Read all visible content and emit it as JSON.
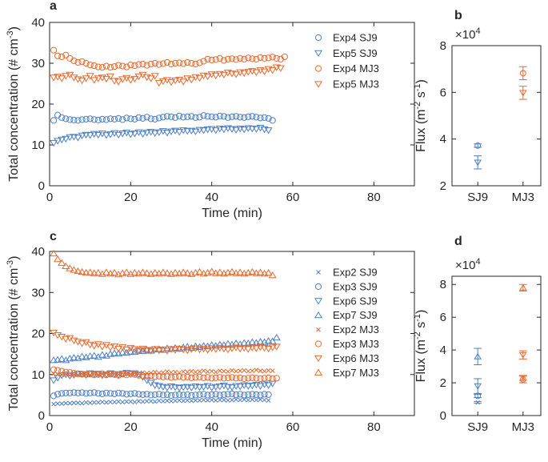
{
  "colors": {
    "sj9": "#4d7fc4",
    "mj3": "#e8692c",
    "axis": "#262626"
  },
  "chart_data": [
    {
      "panel": "a",
      "type": "scatter",
      "xlabel": "Time (min)",
      "ylabel": "Total concentration (# cm^-3)",
      "ylabel_main": "Total concentration (# cm",
      "ylabel_sup": "-3",
      "ylabel_end": ")",
      "xlim": [
        0,
        90
      ],
      "ylim": [
        0,
        40
      ],
      "xticks": [
        0,
        20,
        40,
        60,
        80
      ],
      "yticks": [
        0,
        10,
        20,
        30,
        40
      ],
      "legend_position": "right",
      "series": [
        {
          "name": "Exp4 SJ9",
          "color": "sj9",
          "marker": "circle",
          "start": 1,
          "step": 1,
          "end": 55,
          "values": [
            16.0,
            17.3,
            16.7,
            16.4,
            16.2,
            16.1,
            16.0,
            16.2,
            16.3,
            16.4,
            16.2,
            16.1,
            16.3,
            16.2,
            16.4,
            16.3,
            16.5,
            16.2,
            16.6,
            16.4,
            16.3,
            16.7,
            16.5,
            16.8,
            16.4,
            16.3,
            16.6,
            16.8,
            17.0,
            16.9,
            16.7,
            17.1,
            16.8,
            16.9,
            17.0,
            16.7,
            16.8,
            17.2,
            17.0,
            16.9,
            16.8,
            17.1,
            17.0,
            16.7,
            16.9,
            17.0,
            16.8,
            16.7,
            16.9,
            17.0,
            16.8,
            16.6,
            16.7,
            16.5,
            16.0
          ]
        },
        {
          "name": "Exp5 SJ9",
          "color": "sj9",
          "marker": "triangle-down",
          "start": 1,
          "step": 1,
          "end": 54,
          "values": [
            10.5,
            11.0,
            11.3,
            11.5,
            11.9,
            12.0,
            11.8,
            12.3,
            12.5,
            12.4,
            12.7,
            12.5,
            12.8,
            12.4,
            12.6,
            12.9,
            12.5,
            12.8,
            13.0,
            12.6,
            12.8,
            13.1,
            12.7,
            13.0,
            13.2,
            12.9,
            13.1,
            13.4,
            13.0,
            13.3,
            13.5,
            13.2,
            13.6,
            13.4,
            13.5,
            13.3,
            13.7,
            13.6,
            13.8,
            13.9,
            13.6,
            14.0,
            13.8,
            14.1,
            13.9,
            13.7,
            14.0,
            13.8,
            14.1,
            14.0,
            13.9,
            14.2,
            13.8,
            13.6
          ]
        },
        {
          "name": "Exp4 MJ3",
          "color": "mj3",
          "marker": "circle",
          "start": 1,
          "step": 1,
          "end": 58,
          "values": [
            33.2,
            31.8,
            31.6,
            32.0,
            31.2,
            30.6,
            30.2,
            30.4,
            30.0,
            29.6,
            29.4,
            29.1,
            29.0,
            29.3,
            29.0,
            29.2,
            29.5,
            29.3,
            29.1,
            29.6,
            29.4,
            29.7,
            29.8,
            29.5,
            29.8,
            30.0,
            29.7,
            29.9,
            30.2,
            29.8,
            30.0,
            30.1,
            29.9,
            30.2,
            30.0,
            29.8,
            30.1,
            30.5,
            31.0,
            30.8,
            30.9,
            31.2,
            30.7,
            31.0,
            31.1,
            30.9,
            31.2,
            31.0,
            31.3,
            31.1,
            31.0,
            31.4,
            31.2,
            31.3,
            31.5,
            31.2,
            31.0,
            31.6
          ]
        },
        {
          "name": "Exp5 MJ3",
          "color": "mj3",
          "marker": "triangle-down",
          "start": 1,
          "step": 1,
          "end": 57,
          "values": [
            26.5,
            26.7,
            26.3,
            26.9,
            27.2,
            26.5,
            26.1,
            25.8,
            26.3,
            26.9,
            25.9,
            26.3,
            26.5,
            26.2,
            26.8,
            25.7,
            25.5,
            26.1,
            26.4,
            25.9,
            26.2,
            26.8,
            27.2,
            26.6,
            26.3,
            26.9,
            25.2,
            25.6,
            25.9,
            25.4,
            25.8,
            26.0,
            25.5,
            26.3,
            26.0,
            26.6,
            26.4,
            27.0,
            26.8,
            27.3,
            27.0,
            27.4,
            27.2,
            27.7,
            27.5,
            27.3,
            27.8,
            27.6,
            27.9,
            28.1,
            27.8,
            28.3,
            28.0,
            28.6,
            28.3,
            29.0,
            28.8
          ]
        }
      ]
    },
    {
      "panel": "b",
      "type": "scatter",
      "xlabel": "",
      "ylabel": "Flux (m^-2 s^-1)",
      "ylabel_main": "Flux (m",
      "ylabel_sup1": "-2",
      "ylabel_mid": " s",
      "ylabel_sup2": "-1",
      "ylabel_end": ")",
      "exponent_prefix": "×10",
      "exponent_power": "4",
      "categories": [
        "SJ9",
        "MJ3"
      ],
      "ylim": [
        2,
        8
      ],
      "yticks": [
        2,
        4,
        6,
        8
      ],
      "series": [
        {
          "name": "Exp4 SJ9",
          "category": "SJ9",
          "color": "sj9",
          "marker": "circle",
          "value": 3.72,
          "error": 0.07
        },
        {
          "name": "Exp5 SJ9",
          "category": "SJ9",
          "color": "sj9",
          "marker": "triangle-down",
          "value": 3.0,
          "error": 0.28
        },
        {
          "name": "Exp4 MJ3",
          "category": "MJ3",
          "color": "mj3",
          "marker": "circle",
          "value": 6.82,
          "error": 0.28
        },
        {
          "name": "Exp5 MJ3",
          "category": "MJ3",
          "color": "mj3",
          "marker": "triangle-down",
          "value": 5.98,
          "error": 0.28
        }
      ]
    },
    {
      "panel": "c",
      "type": "scatter",
      "xlabel": "Time (min)",
      "ylabel": "Total concentration (# cm^-3)",
      "ylabel_main": "Total concentration (# cm",
      "ylabel_sup": "-3",
      "ylabel_end": ")",
      "xlim": [
        0,
        90
      ],
      "ylim": [
        0,
        40
      ],
      "xticks": [
        0,
        20,
        40,
        60,
        80
      ],
      "yticks": [
        0,
        10,
        20,
        30,
        40
      ],
      "legend_position": "right",
      "series": [
        {
          "name": "Exp2 SJ9",
          "color": "sj9",
          "marker": "x",
          "start": 1,
          "step": 1,
          "end": 54,
          "values": [
            2.8,
            2.9,
            2.9,
            3.0,
            3.0,
            3.1,
            3.1,
            3.0,
            3.2,
            3.1,
            3.2,
            3.2,
            3.3,
            3.2,
            3.3,
            3.3,
            3.4,
            3.3,
            3.4,
            3.4,
            3.3,
            3.5,
            3.4,
            3.5,
            3.5,
            3.4,
            3.6,
            3.5,
            3.6,
            3.5,
            3.6,
            3.7,
            3.6,
            3.7,
            3.6,
            3.7,
            3.7,
            3.8,
            3.7,
            3.8,
            3.7,
            3.8,
            3.8,
            3.7,
            3.8,
            3.9,
            3.8,
            3.9,
            3.8,
            3.9,
            3.8,
            3.9,
            3.8,
            3.7
          ]
        },
        {
          "name": "Exp3 SJ9",
          "color": "sj9",
          "marker": "circle",
          "start": 1,
          "step": 1,
          "end": 54,
          "values": [
            4.8,
            5.2,
            5.4,
            5.5,
            5.5,
            5.6,
            5.5,
            5.6,
            5.4,
            5.5,
            5.6,
            5.4,
            5.3,
            5.5,
            5.4,
            5.3,
            5.5,
            5.4,
            5.2,
            5.3,
            5.4,
            5.2,
            5.1,
            5.2,
            5.0,
            5.1,
            5.2,
            5.0,
            5.1,
            4.9,
            5.0,
            5.1,
            5.0,
            5.1,
            4.9,
            5.0,
            5.1,
            5.2,
            5.0,
            5.1,
            5.2,
            5.0,
            5.1,
            5.2,
            5.3,
            5.1,
            5.2,
            5.0,
            5.1,
            5.2,
            5.1,
            5.0,
            5.2,
            5.1
          ]
        },
        {
          "name": "Exp6 SJ9",
          "color": "sj9",
          "marker": "triangle-down",
          "start": 1,
          "step": 1,
          "end": 55,
          "values": [
            8.6,
            9.2,
            9.8,
            10.0,
            9.7,
            9.9,
            10.2,
            10.1,
            9.9,
            10.3,
            10.1,
            10.2,
            9.8,
            10.0,
            10.3,
            10.1,
            9.9,
            10.2,
            10.4,
            10.1,
            10.3,
            10.0,
            9.4,
            8.6,
            8.0,
            7.4,
            7.2,
            7.0,
            6.8,
            7.1,
            6.9,
            6.7,
            6.9,
            7.0,
            6.8,
            7.1,
            6.9,
            7.0,
            7.2,
            6.8,
            7.0,
            7.1,
            7.3,
            7.0,
            6.9,
            7.2,
            7.1,
            7.4,
            7.2,
            7.3,
            7.5,
            7.2,
            7.6,
            7.4,
            7.8
          ]
        },
        {
          "name": "Exp7 SJ9",
          "color": "sj9",
          "marker": "triangle",
          "start": 1,
          "step": 1,
          "end": 56,
          "values": [
            13.5,
            13.6,
            13.8,
            13.5,
            13.9,
            14.1,
            14.0,
            14.4,
            14.2,
            14.5,
            14.6,
            14.3,
            14.8,
            14.6,
            15.0,
            15.2,
            15.1,
            15.4,
            15.3,
            15.6,
            15.5,
            15.8,
            15.7,
            16.0,
            15.8,
            16.1,
            16.2,
            16.0,
            16.4,
            16.2,
            16.5,
            16.3,
            16.6,
            16.8,
            16.5,
            16.9,
            16.7,
            17.0,
            16.9,
            17.2,
            17.0,
            17.3,
            17.2,
            17.5,
            17.3,
            17.6,
            17.4,
            17.7,
            17.6,
            17.9,
            17.7,
            18.0,
            17.9,
            18.2,
            18.1,
            19.0
          ]
        },
        {
          "name": "Exp2 MJ3",
          "color": "mj3",
          "marker": "x",
          "start": 1,
          "step": 1,
          "end": 55,
          "values": [
            10.2,
            10.0,
            9.9,
            10.1,
            9.8,
            10.0,
            9.9,
            10.1,
            10.0,
            9.9,
            10.2,
            10.0,
            10.1,
            10.3,
            10.1,
            10.2,
            10.0,
            10.3,
            10.2,
            10.1,
            10.4,
            10.2,
            10.5,
            10.3,
            10.4,
            10.6,
            10.4,
            10.5,
            10.7,
            10.5,
            10.6,
            10.4,
            10.7,
            10.6,
            10.8,
            10.6,
            10.7,
            10.9,
            10.7,
            10.8,
            10.6,
            10.9,
            10.8,
            10.7,
            11.0,
            10.8,
            10.9,
            11.0,
            10.8,
            10.9,
            11.1,
            10.9,
            10.8,
            11.0,
            10.9
          ]
        },
        {
          "name": "Exp3 MJ3",
          "color": "mj3",
          "marker": "circle",
          "start": 1,
          "step": 1,
          "end": 56,
          "values": [
            11.2,
            11.0,
            10.8,
            10.6,
            10.5,
            10.3,
            10.2,
            10.1,
            10.0,
            10.1,
            9.9,
            10.0,
            10.2,
            9.9,
            10.1,
            10.0,
            9.8,
            10.1,
            9.9,
            10.2,
            10.0,
            9.8,
            9.7,
            9.6,
            9.7,
            9.5,
            9.6,
            9.4,
            9.5,
            9.3,
            9.4,
            9.5,
            9.3,
            9.4,
            9.2,
            9.3,
            9.4,
            9.2,
            9.3,
            9.1,
            9.2,
            9.3,
            9.1,
            9.2,
            9.3,
            9.1,
            9.2,
            9.0,
            9.1,
            9.2,
            9.1,
            9.0,
            9.1,
            9.2,
            9.0,
            9.1
          ]
        },
        {
          "name": "Exp6 MJ3",
          "color": "mj3",
          "marker": "triangle-down",
          "start": 1,
          "step": 1,
          "end": 56,
          "values": [
            20.2,
            19.6,
            19.2,
            18.7,
            18.9,
            18.3,
            18.0,
            17.6,
            17.9,
            17.3,
            17.0,
            17.4,
            16.8,
            17.2,
            16.6,
            16.9,
            16.3,
            16.7,
            16.1,
            16.5,
            16.2,
            15.9,
            16.3,
            16.0,
            15.8,
            16.2,
            15.9,
            16.1,
            15.8,
            16.2,
            16.0,
            16.3,
            16.1,
            15.9,
            16.2,
            16.4,
            16.1,
            16.3,
            16.0,
            16.4,
            16.2,
            16.5,
            16.3,
            16.1,
            16.4,
            16.6,
            16.3,
            16.5,
            16.2,
            16.6,
            16.4,
            16.7,
            16.5,
            16.3,
            16.6,
            16.8
          ]
        },
        {
          "name": "Exp7 MJ3",
          "color": "mj3",
          "marker": "triangle",
          "start": 1,
          "step": 1,
          "end": 55,
          "values": [
            39.5,
            38.1,
            37.2,
            36.4,
            35.9,
            35.5,
            35.2,
            35.0,
            34.8,
            34.9,
            34.7,
            34.8,
            34.5,
            34.9,
            34.6,
            34.8,
            34.4,
            34.7,
            34.9,
            34.5,
            34.8,
            34.6,
            34.9,
            34.7,
            34.5,
            34.8,
            34.6,
            34.9,
            34.7,
            34.5,
            34.8,
            34.6,
            34.9,
            34.7,
            34.5,
            34.8,
            35.0,
            34.6,
            34.8,
            35.1,
            34.7,
            34.9,
            34.6,
            34.8,
            35.0,
            34.7,
            34.9,
            34.6,
            34.8,
            35.0,
            34.7,
            34.9,
            34.6,
            34.8,
            34.2
          ]
        }
      ]
    },
    {
      "panel": "d",
      "type": "scatter",
      "xlabel": "",
      "ylabel": "Flux (m^-2 s^-1)",
      "ylabel_main": "Flux (m",
      "ylabel_sup1": "-2",
      "ylabel_mid": " s",
      "ylabel_sup2": "-1",
      "ylabel_end": ")",
      "exponent_prefix": "×10",
      "exponent_power": "4",
      "categories": [
        "SJ9",
        "MJ3"
      ],
      "ylim": [
        0,
        8.5
      ],
      "yticks": [
        0,
        2,
        4,
        6,
        8
      ],
      "series": [
        {
          "name": "Exp2 SJ9",
          "category": "SJ9",
          "color": "sj9",
          "marker": "x",
          "value": 0.8,
          "error": 0.05
        },
        {
          "name": "Exp3 SJ9",
          "category": "SJ9",
          "color": "sj9",
          "marker": "circle",
          "value": 1.2,
          "error": 0.1
        },
        {
          "name": "Exp6 SJ9",
          "category": "SJ9",
          "color": "sj9",
          "marker": "triangle-down",
          "value": 1.8,
          "error": 0.45
        },
        {
          "name": "Exp7 SJ9",
          "category": "SJ9",
          "color": "sj9",
          "marker": "triangle",
          "value": 3.6,
          "error": 0.5
        },
        {
          "name": "Exp2 MJ3",
          "category": "MJ3",
          "color": "mj3",
          "marker": "x",
          "value": 2.3,
          "error": 0.15
        },
        {
          "name": "Exp3 MJ3",
          "category": "MJ3",
          "color": "mj3",
          "marker": "circle",
          "value": 2.2,
          "error": 0.2
        },
        {
          "name": "Exp6 MJ3",
          "category": "MJ3",
          "color": "mj3",
          "marker": "triangle-down",
          "value": 3.7,
          "error": 0.25
        },
        {
          "name": "Exp7 MJ3",
          "category": "MJ3",
          "color": "mj3",
          "marker": "triangle",
          "value": 7.8,
          "error": 0.2
        }
      ]
    }
  ]
}
